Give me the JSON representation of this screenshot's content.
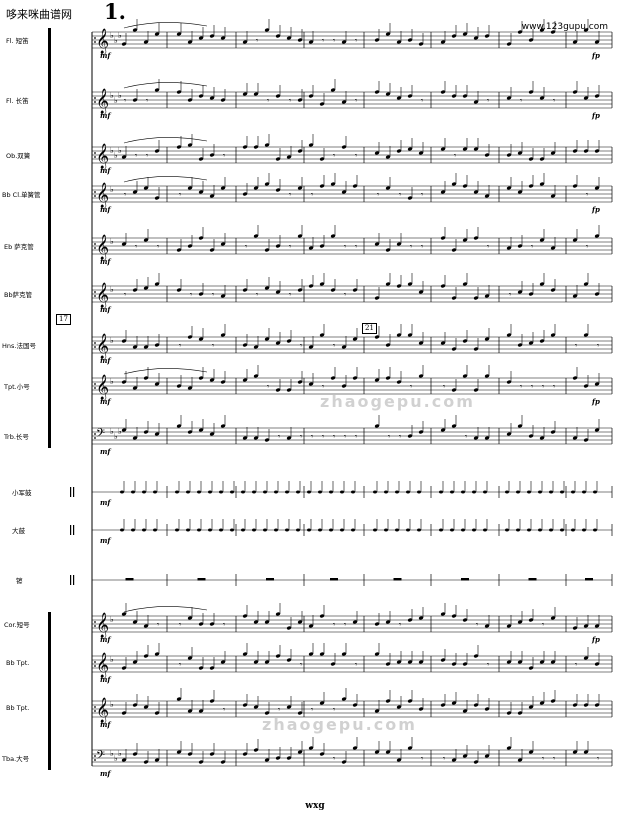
{
  "header": {
    "site_title": "哆来咪曲谱网",
    "site_url": "www.123gupu.com"
  },
  "volta": "1.",
  "rehearsal_marks": [
    "17",
    "21"
  ],
  "footer": "wxg",
  "watermark": {
    "text": "zhaogepu.com"
  },
  "dynamics": {
    "mf": "mf",
    "fp": "fp"
  },
  "instruments": [
    {
      "label": "Fl. 短笛"
    },
    {
      "label": "Fl. 长笛"
    },
    {
      "label": "Ob.双簧"
    },
    {
      "label": "Bb Cl.单簧管"
    },
    {
      "label": "Eb 萨克管"
    },
    {
      "label": "Bb萨克管"
    },
    {
      "label": "Hns.法国号"
    },
    {
      "label": "Tpt.小号"
    },
    {
      "label": "Trb.长号"
    },
    {
      "label": "小军鼓"
    },
    {
      "label": "大鼓"
    },
    {
      "label": "镲"
    },
    {
      "label": "Cor.短号"
    },
    {
      "label": "Bb Tpt."
    },
    {
      "label": "Bb Tpt."
    },
    {
      "label": "Tba.大号"
    }
  ]
}
